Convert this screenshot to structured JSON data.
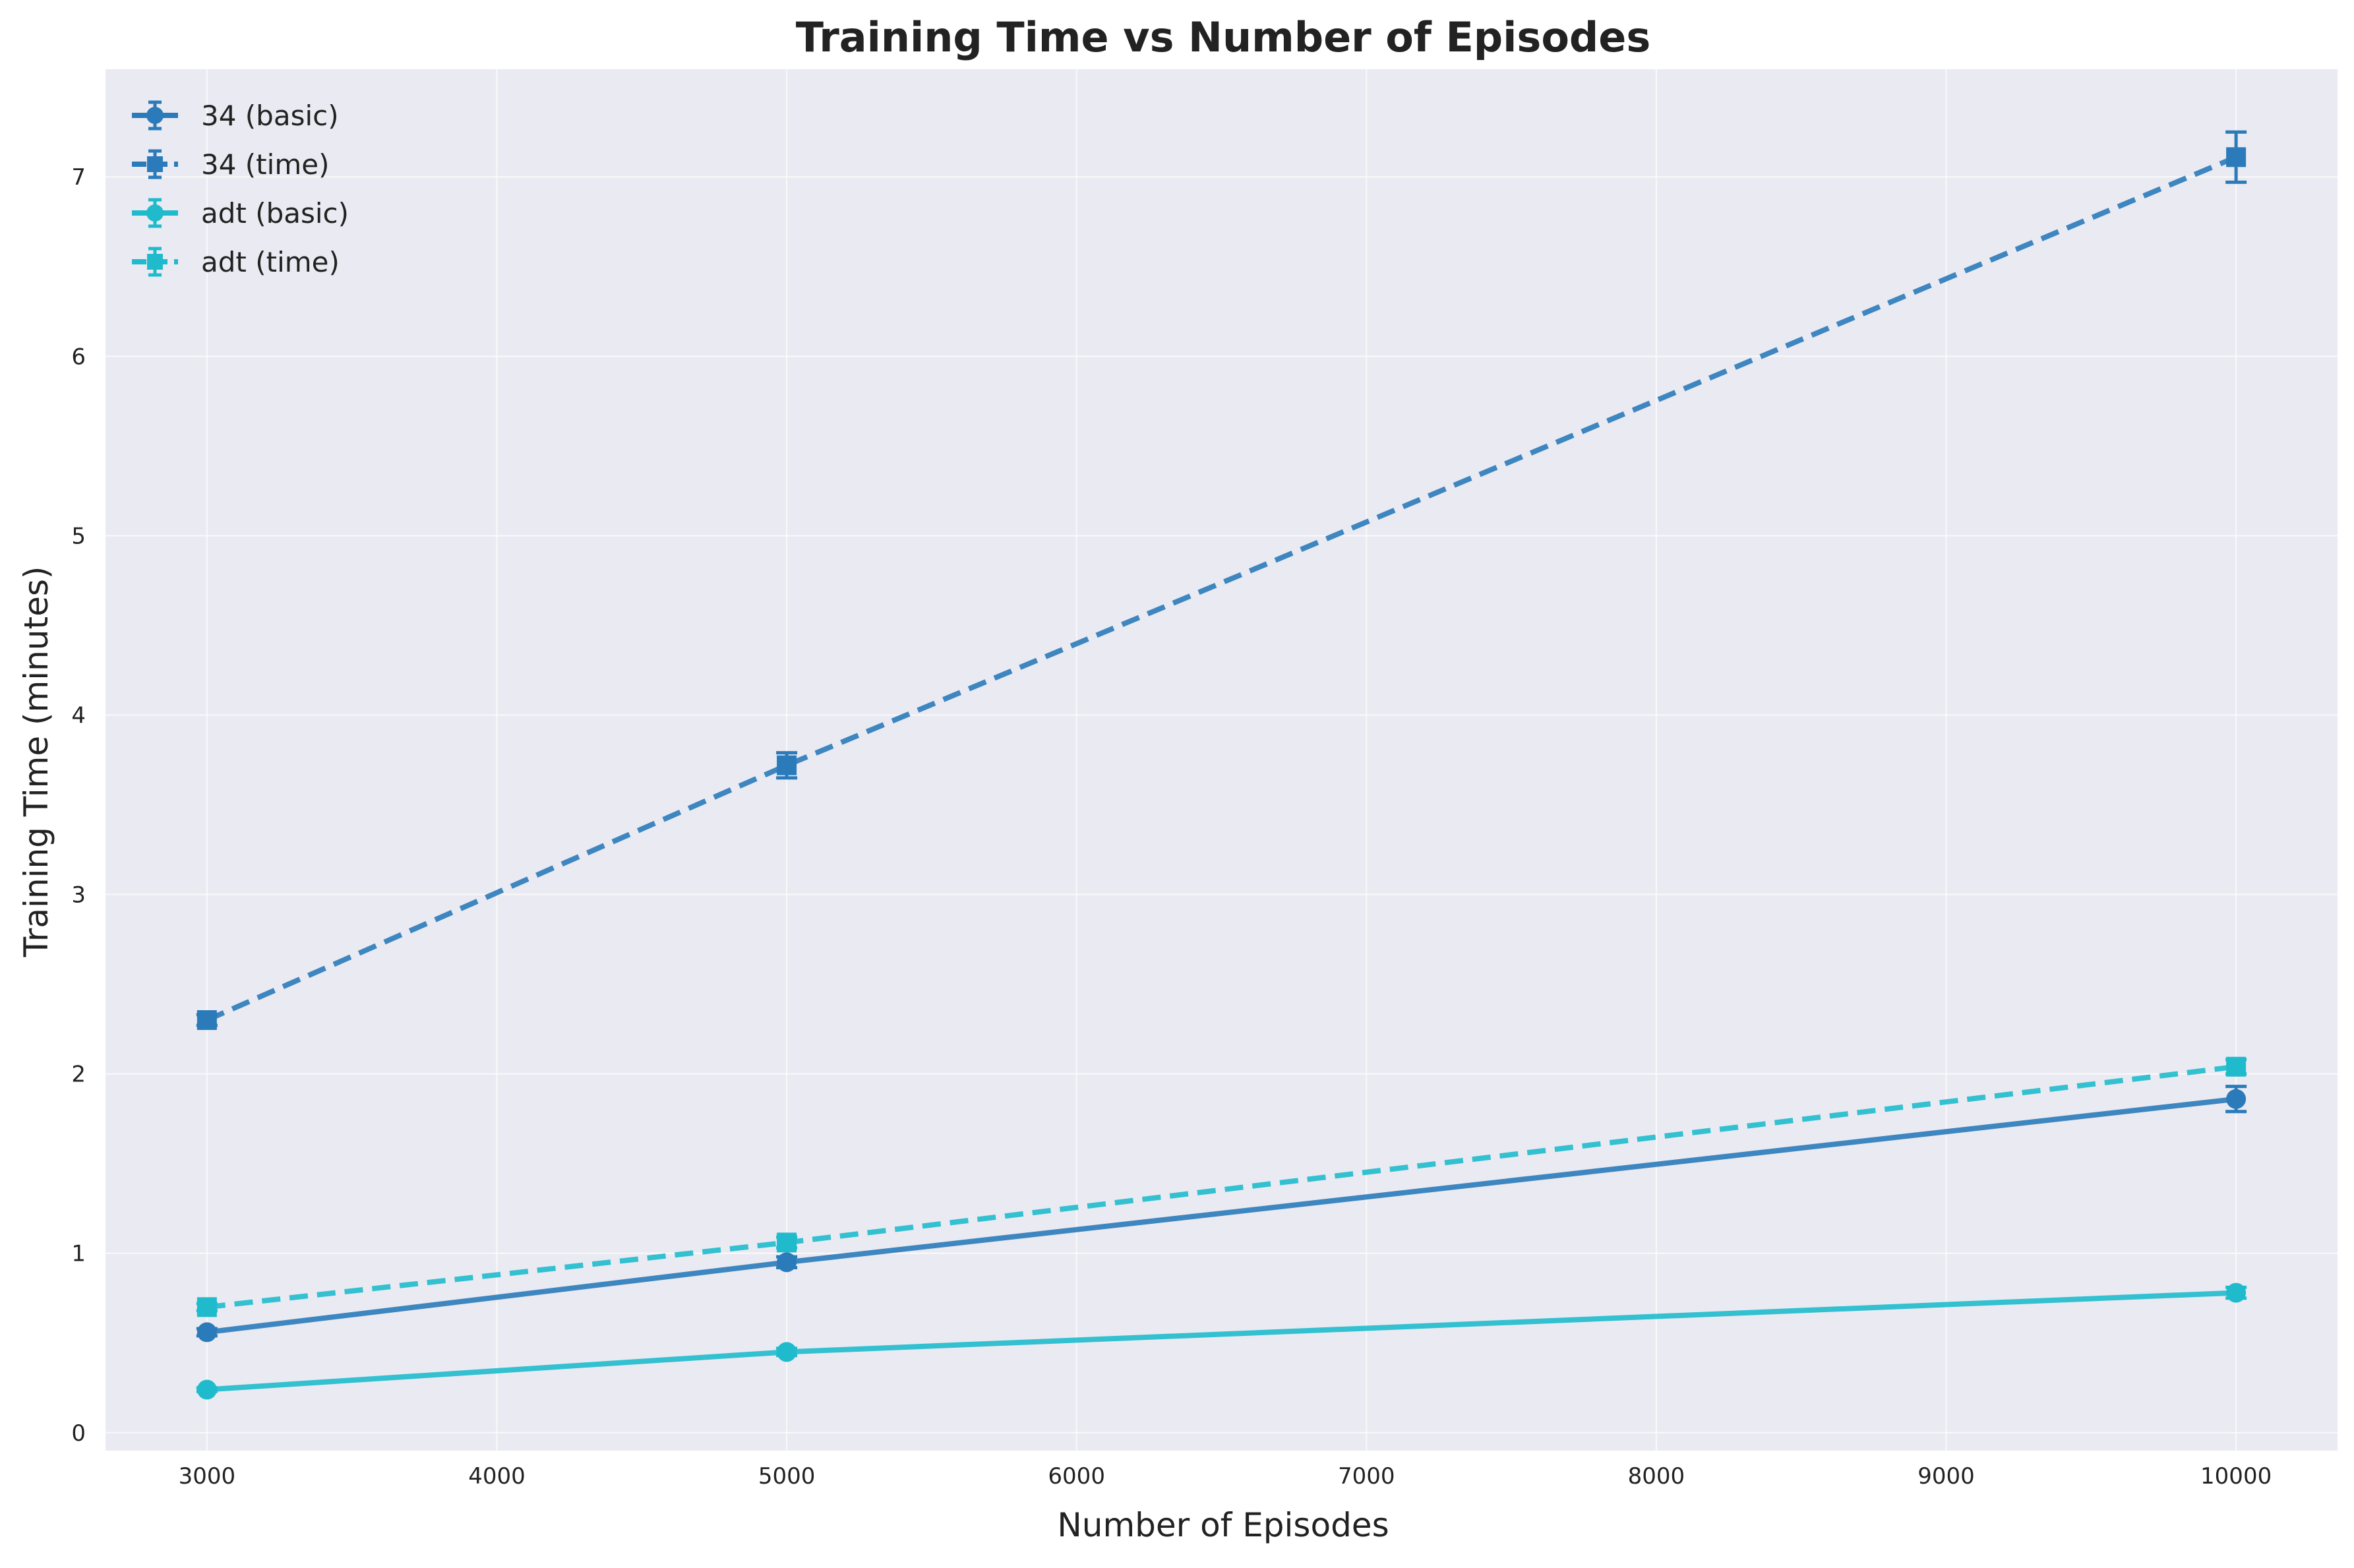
{
  "chart_data": {
    "type": "line",
    "title": "Training Time vs Number of Episodes",
    "xlabel": "Number of Episodes",
    "ylabel": "Training Time (minutes)",
    "xlim": [
      2650,
      10350
    ],
    "ylim": [
      -0.1,
      7.6
    ],
    "xticks": [
      3000,
      4000,
      5000,
      6000,
      7000,
      8000,
      9000,
      10000
    ],
    "yticks": [
      0,
      1,
      2,
      3,
      4,
      5,
      6,
      7
    ],
    "grid": true,
    "legend_position": "top-left",
    "x": [
      3000,
      5000,
      10000
    ],
    "series": [
      {
        "name": "34 (basic)",
        "color": "#2b7bba",
        "line": "solid",
        "marker": "circle",
        "values": [
          0.56,
          0.95,
          1.86
        ],
        "errors": [
          0.02,
          0.03,
          0.07
        ]
      },
      {
        "name": "34 (time)",
        "color": "#2b7bba",
        "line": "dashed",
        "marker": "square",
        "values": [
          2.3,
          3.72,
          7.11
        ],
        "errors": [
          0.03,
          0.07,
          0.14
        ]
      },
      {
        "name": "adt (basic)",
        "color": "#1fbbcc",
        "line": "solid",
        "marker": "circle",
        "values": [
          0.24,
          0.45,
          0.78
        ],
        "errors": [
          0.01,
          0.02,
          0.03
        ]
      },
      {
        "name": "adt (time)",
        "color": "#1fbbcc",
        "line": "dashed",
        "marker": "square",
        "values": [
          0.7,
          1.06,
          2.04
        ],
        "errors": [
          0.02,
          0.03,
          0.04
        ]
      }
    ]
  },
  "colors": {
    "plot_background": "#eaeaf2",
    "grid": "#ffffff",
    "text": "#222222"
  }
}
